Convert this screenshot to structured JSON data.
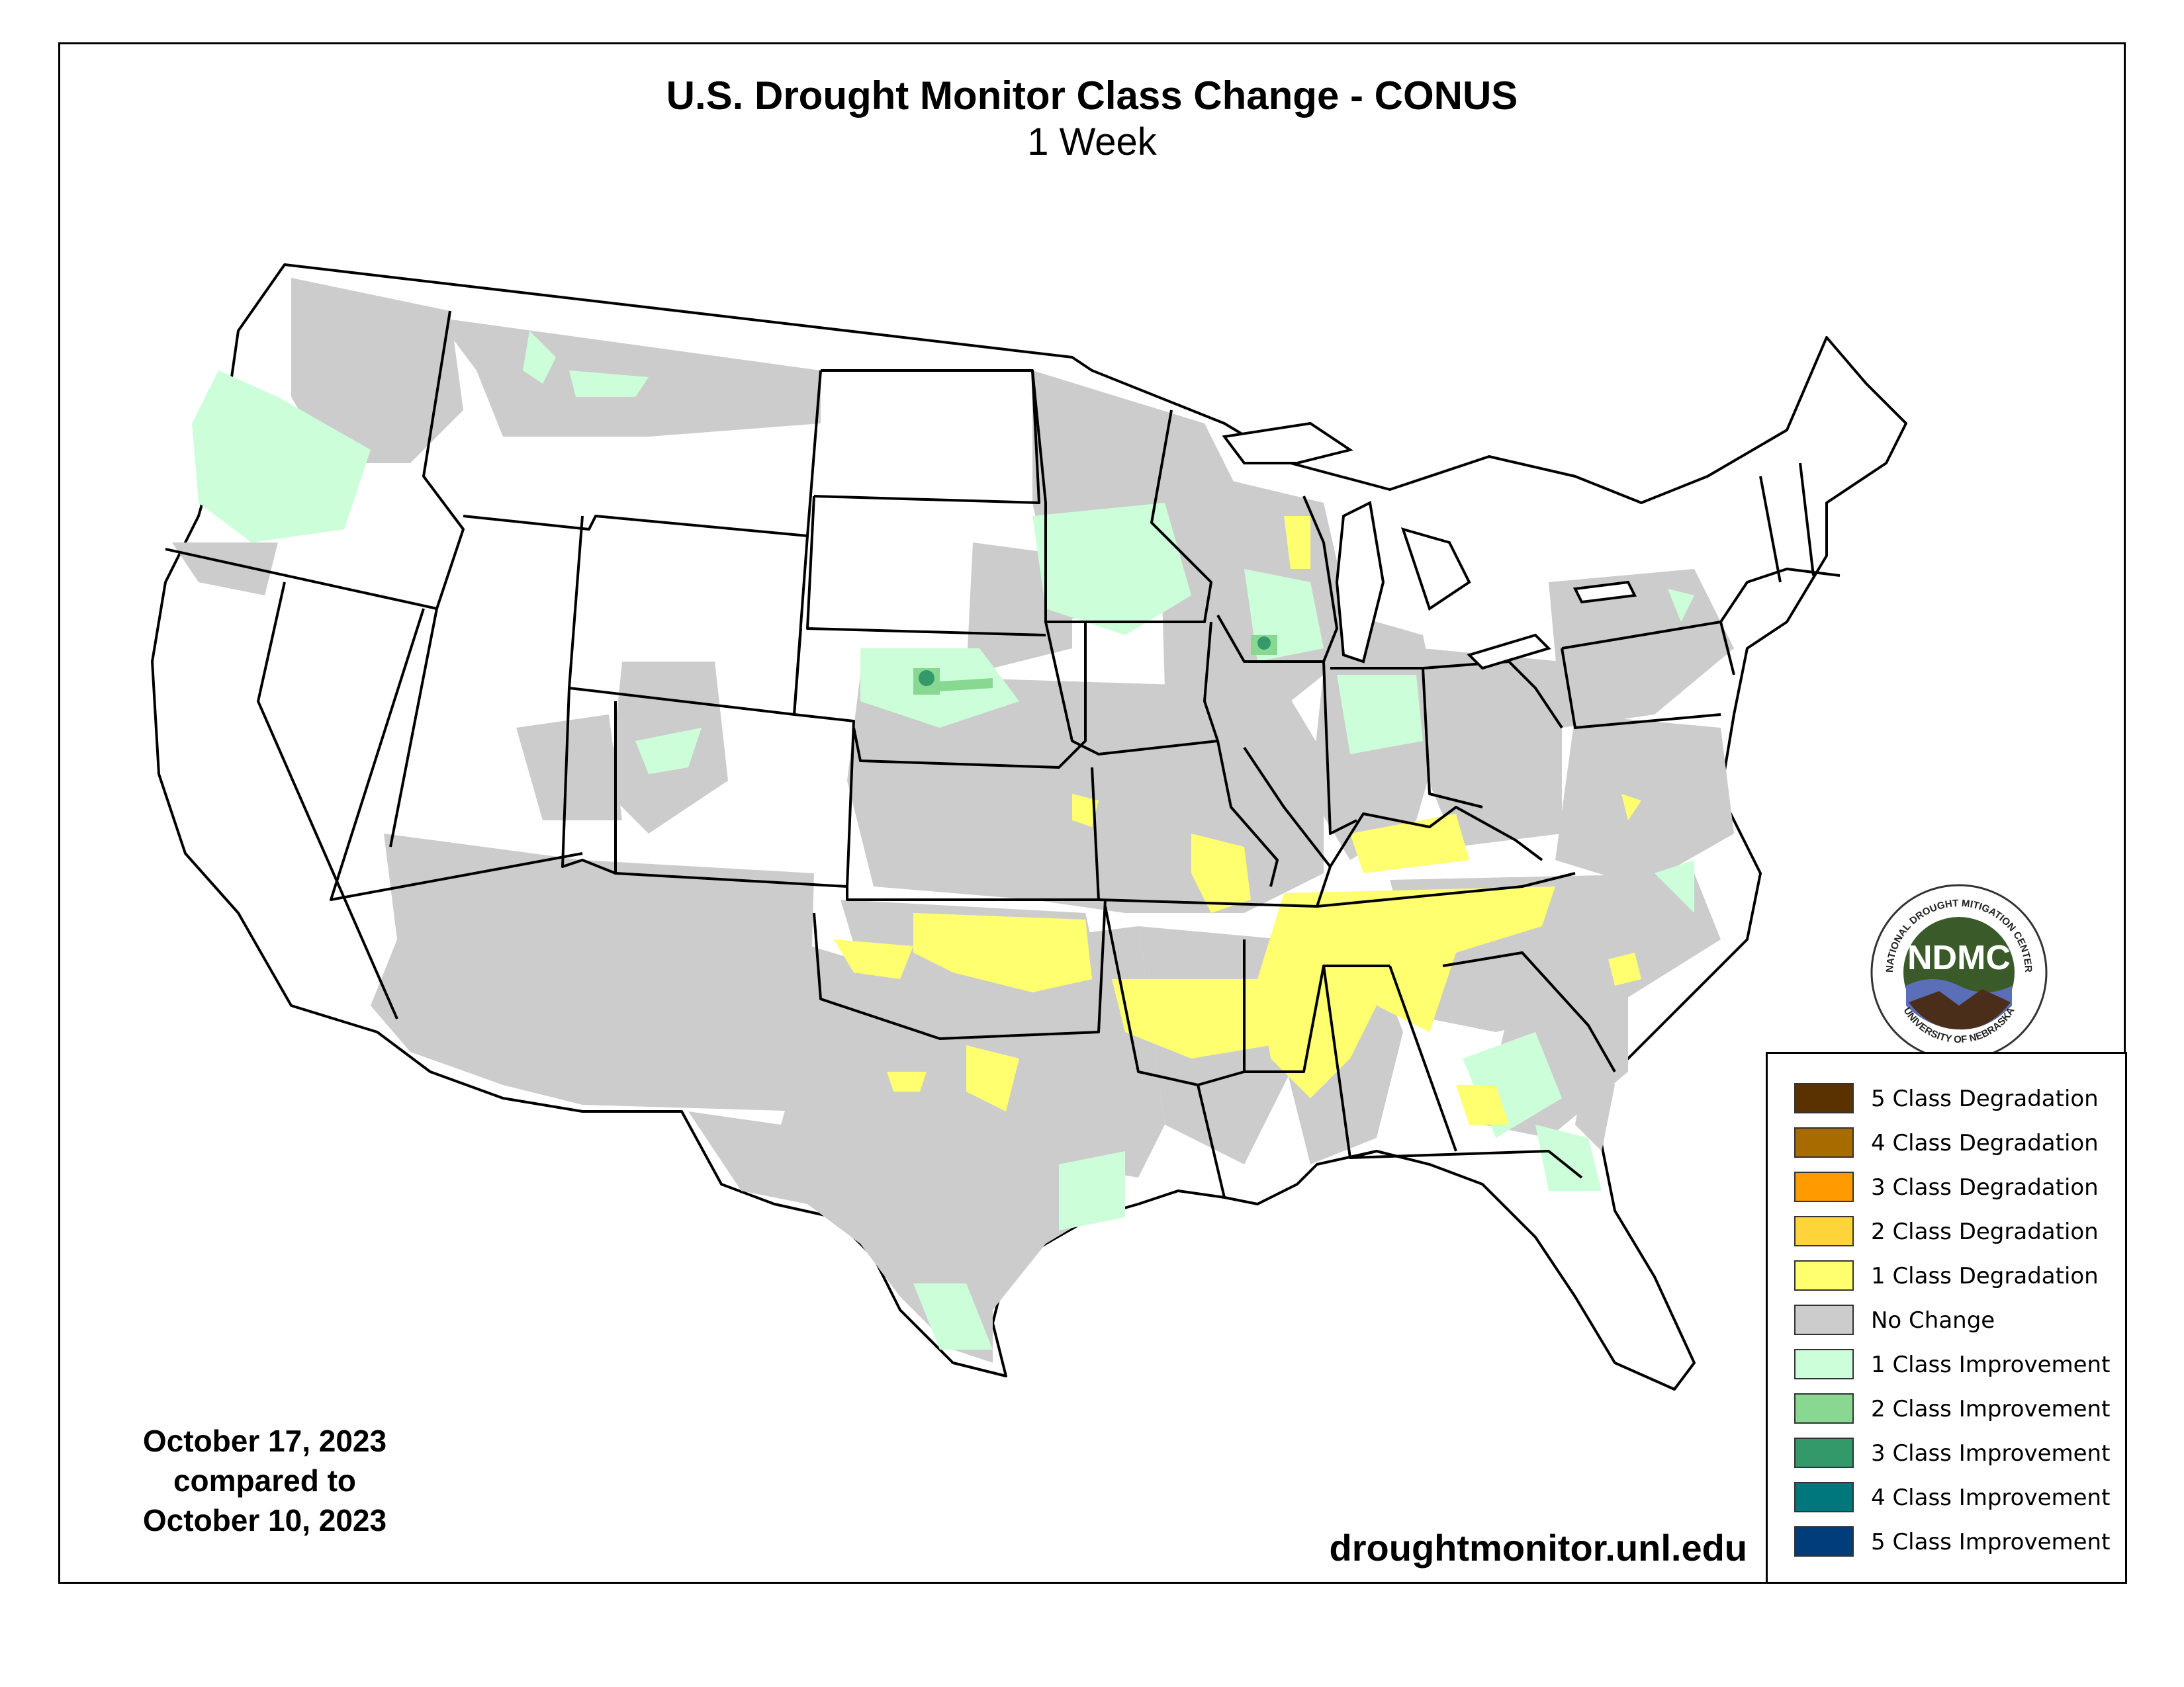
{
  "map": {
    "title": "U.S. Drought Monitor Class Change - CONUS",
    "subtitle": "1 Week",
    "date_line1": "October 17, 2023",
    "date_line2": "compared to",
    "date_line3": "October 10, 2023",
    "website": "droughtmonitor.unl.edu"
  },
  "legend": {
    "items": [
      {
        "label": "5 Class Degradation",
        "color": "#5a3200"
      },
      {
        "label": "4 Class Degradation",
        "color": "#a86b00"
      },
      {
        "label": "3 Class Degradation",
        "color": "#ff9a00"
      },
      {
        "label": "2 Class Degradation",
        "color": "#ffd43b"
      },
      {
        "label": "1 Class Degradation",
        "color": "#ffff70"
      },
      {
        "label": "No Change",
        "color": "#cccccc"
      },
      {
        "label": "1 Class Improvement",
        "color": "#ccffd9"
      },
      {
        "label": "2 Class Improvement",
        "color": "#88d891"
      },
      {
        "label": "3 Class Improvement",
        "color": "#33996b"
      },
      {
        "label": "4 Class Improvement",
        "color": "#00777a"
      },
      {
        "label": "5 Class Improvement",
        "color": "#003d7a"
      }
    ]
  },
  "logo": {
    "acronym": "NDMC",
    "top_text": "NATIONAL DROUGHT MITIGATION CENTER",
    "bottom_text": "UNIVERSITY OF NEBRASKA"
  }
}
